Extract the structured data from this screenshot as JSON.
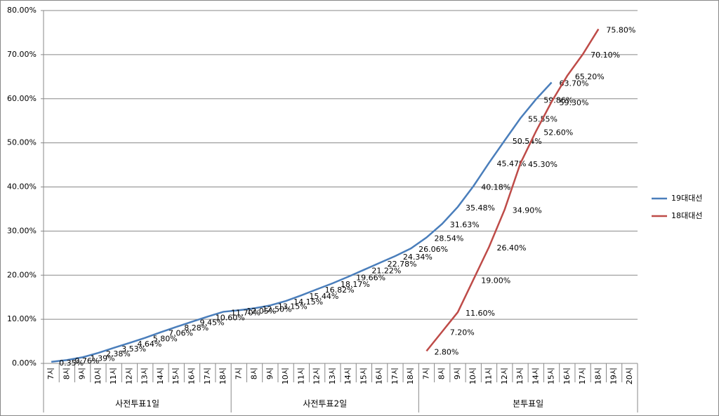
{
  "chart_data": {
    "type": "line",
    "category_groups": [
      {
        "label": "사전투표1일",
        "categories": [
          "7시",
          "8시",
          "9시",
          "10시",
          "11시",
          "12시",
          "13시",
          "14시",
          "15시",
          "16시",
          "17시",
          "18시"
        ]
      },
      {
        "label": "사전투표2일",
        "categories": [
          "7시",
          "8시",
          "9시",
          "10시",
          "11시",
          "12시",
          "13시",
          "14시",
          "15시",
          "16시",
          "17시",
          "18시"
        ]
      },
      {
        "label": "본투표일",
        "categories": [
          "7시",
          "8시",
          "9시",
          "10시",
          "11시",
          "12시",
          "13시",
          "14시",
          "15시",
          "16시",
          "17시",
          "18시",
          "19시",
          "20시"
        ]
      }
    ],
    "series": [
      {
        "name": "19대대선",
        "color": "#4a7ebb",
        "values": [
          0.35,
          0.76,
          1.39,
          2.38,
          3.53,
          4.64,
          5.8,
          7.06,
          8.28,
          9.45,
          10.6,
          11.7,
          12.05,
          12.5,
          13.15,
          14.15,
          15.44,
          16.82,
          18.17,
          19.66,
          21.22,
          22.78,
          24.34,
          26.06,
          28.54,
          31.63,
          35.48,
          40.18,
          45.47,
          50.54,
          55.55,
          59.86,
          63.7,
          null,
          null,
          null,
          null,
          null
        ],
        "value_labels": [
          "0.35%",
          "0.76%",
          "1.39%",
          "2.38%",
          "3.53%",
          "4.64%",
          "5.80%",
          "7.06%",
          "8.28%",
          "9.45%",
          "10.60%",
          "11.70%",
          "12.05%",
          "12.50%",
          "13.15%",
          "14.15%",
          "15.44%",
          "16.82%",
          "18.17%",
          "19.66%",
          "21.22%",
          "22.78%",
          "24.34%",
          "26.06%",
          "28.54%",
          "31.63%",
          "35.48%",
          "40.18%",
          "45.47%",
          "50.54%",
          "55.55%",
          "59.86%",
          "63.70%",
          null,
          null,
          null,
          null,
          null
        ]
      },
      {
        "name": "18대대선",
        "color": "#be4b48",
        "values": [
          null,
          null,
          null,
          null,
          null,
          null,
          null,
          null,
          null,
          null,
          null,
          null,
          null,
          null,
          null,
          null,
          null,
          null,
          null,
          null,
          null,
          null,
          null,
          null,
          2.8,
          7.2,
          11.6,
          19.0,
          26.4,
          34.9,
          45.3,
          52.6,
          59.3,
          65.2,
          70.1,
          75.8,
          null,
          null
        ],
        "value_labels": [
          null,
          null,
          null,
          null,
          null,
          null,
          null,
          null,
          null,
          null,
          null,
          null,
          null,
          null,
          null,
          null,
          null,
          null,
          null,
          null,
          null,
          null,
          null,
          null,
          "2.80%",
          "7.20%",
          "11.60%",
          "19.00%",
          "26.40%",
          "34.90%",
          "45.30%",
          "52.60%",
          "59.30%",
          "65.20%",
          "70.10%",
          "75.80%",
          null,
          null
        ]
      }
    ],
    "ylim": [
      0,
      80
    ],
    "yticks": [
      {
        "value": 0,
        "label": "0.00%"
      },
      {
        "value": 10,
        "label": "10.00%"
      },
      {
        "value": 20,
        "label": "20.00%"
      },
      {
        "value": 30,
        "label": "30.00%"
      },
      {
        "value": 40,
        "label": "40.00%"
      },
      {
        "value": 50,
        "label": "50.00%"
      },
      {
        "value": 60,
        "label": "60.00%"
      },
      {
        "value": 70,
        "label": "70.00%"
      },
      {
        "value": 80,
        "label": "80.00%"
      }
    ],
    "grid": true,
    "legend": "right"
  }
}
